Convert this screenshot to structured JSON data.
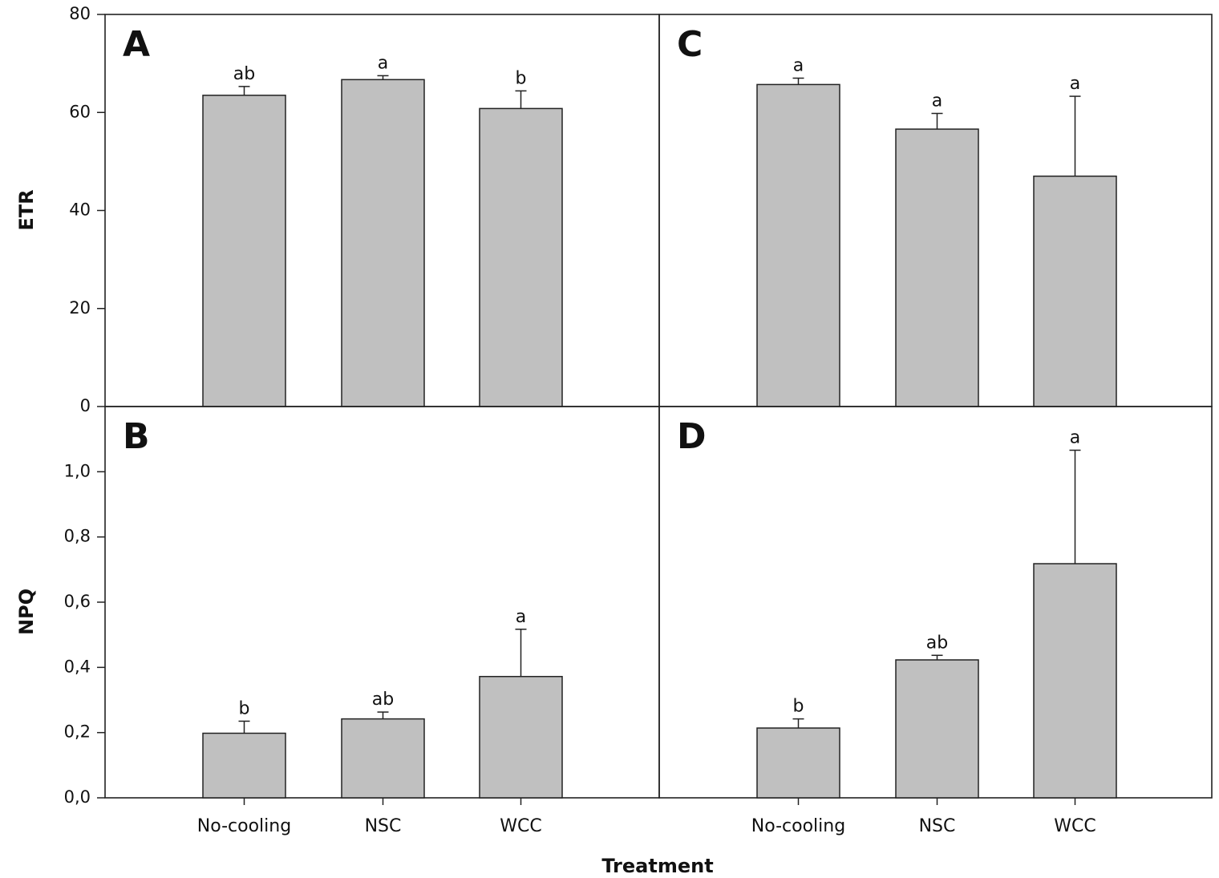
{
  "chart_data": {
    "type": "bar",
    "xlabel": "Treatment",
    "categories": [
      "No-cooling",
      "NSC",
      "WCC"
    ],
    "rows": [
      {
        "ylabel": "ETR",
        "ylim": [
          0,
          80
        ],
        "yticks": [
          0,
          20,
          40,
          60,
          80
        ],
        "tick_format": "integer"
      },
      {
        "ylabel": "NPQ",
        "ylim": [
          0,
          1.2
        ],
        "yticks": [
          0.0,
          0.2,
          0.4,
          0.6,
          0.8,
          1.0
        ],
        "tick_format": "comma1"
      }
    ],
    "panels": [
      {
        "label": "A",
        "row": 0,
        "col": 0,
        "values": [
          63.5,
          66.7,
          60.8
        ],
        "errors": [
          1.8,
          0.8,
          3.6
        ],
        "significance": [
          "ab",
          "a",
          "b"
        ]
      },
      {
        "label": "C",
        "row": 0,
        "col": 1,
        "values": [
          65.7,
          56.6,
          47.0
        ],
        "errors": [
          1.3,
          3.2,
          16.3
        ],
        "significance": [
          "a",
          "a",
          "a"
        ]
      },
      {
        "label": "B",
        "row": 1,
        "col": 0,
        "values": [
          0.198,
          0.242,
          0.372
        ],
        "errors": [
          0.037,
          0.021,
          0.145
        ],
        "significance": [
          "b",
          "ab",
          "a"
        ]
      },
      {
        "label": "D",
        "row": 1,
        "col": 1,
        "values": [
          0.214,
          0.423,
          0.718
        ],
        "errors": [
          0.028,
          0.014,
          0.348
        ],
        "significance": [
          "b",
          "ab",
          "a"
        ]
      }
    ],
    "bar_color": "#c0c0c0",
    "grid": false,
    "legend": "none"
  }
}
